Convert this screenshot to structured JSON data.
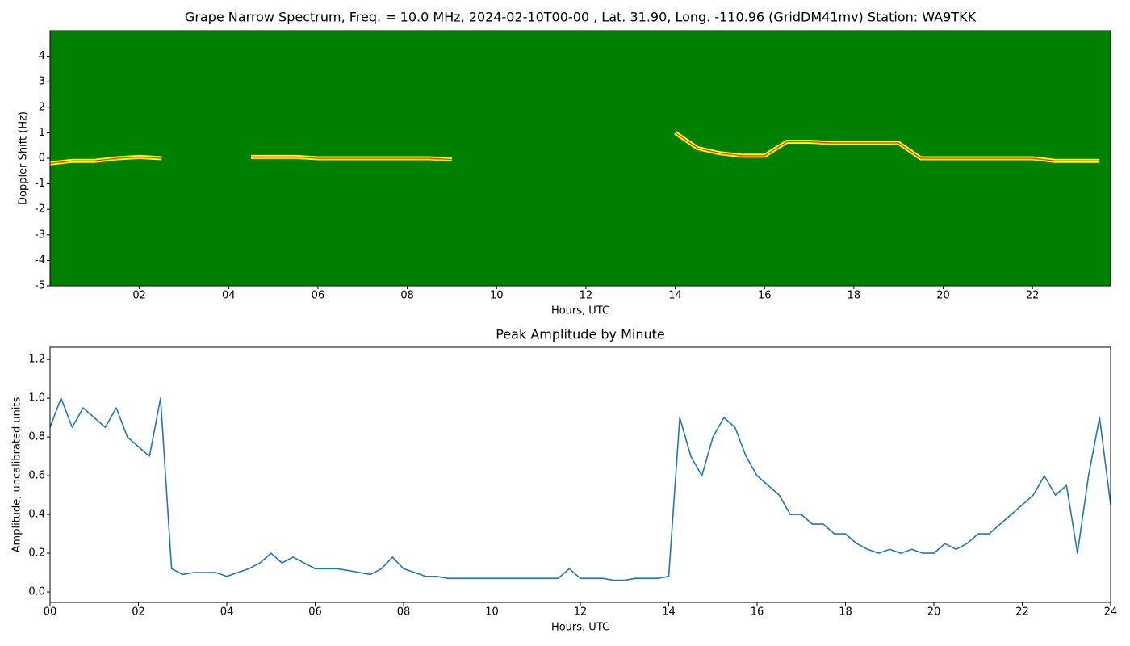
{
  "chart_data": [
    {
      "type": "spectrogram",
      "title": "Grape Narrow Spectrum, Freq. = 10.0 MHz, 2024-02-10T00-00 , Lat.  31.90, Long. -110.96 (GridDM41mv) Station: WA9TKK",
      "x_label": "Hours, UTC",
      "y_label": "Doppler Shift (Hz)",
      "background_color": "#008000",
      "trace_core_color": "#ff2000",
      "xlim": [
        0,
        23.75
      ],
      "ylim": [
        -5,
        5
      ],
      "xticks": [
        {
          "value": 2,
          "label": "02"
        },
        {
          "value": 4,
          "label": "04"
        },
        {
          "value": 6,
          "label": "06"
        },
        {
          "value": 8,
          "label": "08"
        },
        10,
        12,
        14,
        16,
        18,
        20,
        22
      ],
      "yticks": [
        -5,
        -4,
        -3,
        -2,
        -1,
        0,
        1,
        2,
        3,
        4
      ],
      "x": [
        0,
        0.5,
        1,
        1.5,
        2,
        2.5,
        3,
        3.5,
        4,
        4.5,
        5,
        5.5,
        6,
        6.5,
        7,
        7.5,
        8,
        8.5,
        9,
        9.5,
        10,
        10.5,
        11,
        11.5,
        12,
        12.5,
        13,
        13.5,
        14,
        14.5,
        15,
        15.5,
        16,
        16.5,
        17,
        17.5,
        18,
        18.5,
        19,
        19.5,
        20,
        20.5,
        21,
        21.5,
        22,
        22.5,
        23,
        23.5
      ],
      "series": [
        {
          "color": "#ffff00",
          "values": [
            -0.2,
            -0.1,
            -0.1,
            0,
            0.05,
            0,
            null,
            null,
            null,
            0.05,
            0.05,
            0.05,
            0,
            0,
            0,
            0,
            0,
            0,
            -0.05,
            null,
            null,
            null,
            null,
            null,
            null,
            null,
            null,
            null,
            1.0,
            0.4,
            0.2,
            0.1,
            0.1,
            0.65,
            0.65,
            0.6,
            0.6,
            0.6,
            0.6,
            0,
            0,
            0,
            0,
            0,
            0,
            -0.1,
            -0.1,
            -0.1
          ]
        }
      ]
    },
    {
      "type": "line",
      "title": "Peak Amplitude by Minute",
      "x_label": "Hours, UTC",
      "y_label": "Amplitude, uncalibrated units",
      "xlim": [
        0,
        24
      ],
      "ylim": [
        -0.054,
        1.263
      ],
      "xticks": [
        {
          "value": 0,
          "label": "00"
        },
        {
          "value": 2,
          "label": "02"
        },
        {
          "value": 4,
          "label": "04"
        },
        {
          "value": 6,
          "label": "06"
        },
        {
          "value": 8,
          "label": "08"
        },
        10,
        12,
        14,
        16,
        18,
        20,
        22,
        24
      ],
      "yticks": [
        {
          "value": 0,
          "label": "0.0"
        },
        0.2,
        0.4,
        0.6,
        0.8,
        {
          "value": 1,
          "label": "1.0"
        },
        1.2
      ],
      "x": [
        0,
        0.25,
        0.5,
        0.75,
        1,
        1.25,
        1.5,
        1.75,
        2,
        2.25,
        2.5,
        2.75,
        3,
        3.25,
        3.5,
        3.75,
        4,
        4.25,
        4.5,
        4.75,
        5,
        5.25,
        5.5,
        5.75,
        6,
        6.25,
        6.5,
        6.75,
        7,
        7.25,
        7.5,
        7.75,
        8,
        8.25,
        8.5,
        8.75,
        9,
        9.25,
        9.5,
        9.75,
        10,
        10.25,
        10.5,
        10.75,
        11,
        11.25,
        11.5,
        11.75,
        12,
        12.25,
        12.5,
        12.75,
        13,
        13.25,
        13.5,
        13.75,
        14,
        14.25,
        14.5,
        14.75,
        15,
        15.25,
        15.5,
        15.75,
        16,
        16.25,
        16.5,
        16.75,
        17,
        17.25,
        17.5,
        17.75,
        18,
        18.25,
        18.5,
        18.75,
        19,
        19.25,
        19.5,
        19.75,
        20,
        20.25,
        20.5,
        20.75,
        21,
        21.25,
        21.5,
        21.75,
        22,
        22.25,
        22.5,
        22.75,
        23,
        23.25,
        23.5,
        23.75,
        24
      ],
      "series": [
        {
          "color": "#1f77b4",
          "values": [
            0.85,
            1.0,
            0.85,
            0.95,
            0.9,
            0.85,
            0.95,
            0.8,
            0.75,
            0.7,
            1.0,
            0.12,
            0.09,
            0.1,
            0.1,
            0.1,
            0.08,
            0.1,
            0.12,
            0.15,
            0.2,
            0.15,
            0.18,
            0.15,
            0.12,
            0.12,
            0.12,
            0.11,
            0.1,
            0.09,
            0.12,
            0.18,
            0.12,
            0.1,
            0.08,
            0.08,
            0.07,
            0.07,
            0.07,
            0.07,
            0.07,
            0.07,
            0.07,
            0.07,
            0.07,
            0.07,
            0.07,
            0.12,
            0.07,
            0.07,
            0.07,
            0.06,
            0.06,
            0.07,
            0.07,
            0.07,
            0.08,
            0.9,
            0.7,
            0.6,
            0.8,
            0.9,
            0.85,
            0.7,
            0.6,
            0.55,
            0.5,
            0.4,
            0.4,
            0.35,
            0.35,
            0.3,
            0.3,
            0.25,
            0.22,
            0.2,
            0.22,
            0.2,
            0.22,
            0.2,
            0.2,
            0.25,
            0.22,
            0.25,
            0.3,
            0.3,
            0.35,
            0.4,
            0.45,
            0.5,
            0.6,
            0.5,
            0.55,
            0.2,
            0.6,
            0.9,
            0.45
          ]
        }
      ]
    }
  ]
}
